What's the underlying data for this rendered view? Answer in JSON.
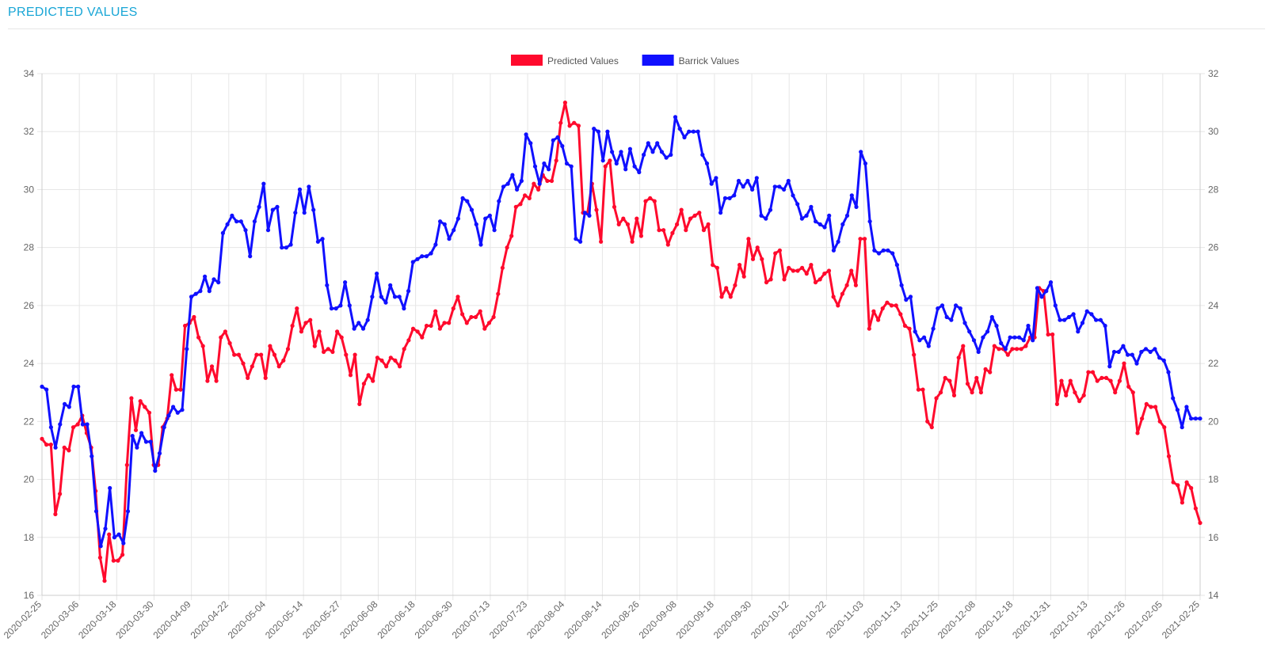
{
  "page": {
    "title": "PREDICTED VALUES"
  },
  "chart_data": {
    "type": "line",
    "title": "",
    "xlabel": "",
    "ylabel": "",
    "legend_position": "top-center",
    "grid": true,
    "x_tick_labels": [
      "2020-02-25",
      "2020-03-06",
      "2020-03-18",
      "2020-03-30",
      "2020-04-09",
      "2020-04-22",
      "2020-05-04",
      "2020-05-14",
      "2020-05-27",
      "2020-06-08",
      "2020-06-18",
      "2020-06-30",
      "2020-07-13",
      "2020-07-23",
      "2020-08-04",
      "2020-08-14",
      "2020-08-26",
      "2020-09-08",
      "2020-09-18",
      "2020-09-30",
      "2020-10-12",
      "2020-10-22",
      "2020-11-03",
      "2020-11-13",
      "2020-11-25",
      "2020-12-08",
      "2020-12-18",
      "2020-12-31",
      "2021-01-13",
      "2021-01-26",
      "2021-02-05",
      "2021-02-25"
    ],
    "y_left": {
      "min": 16,
      "max": 34,
      "ticks": [
        16,
        18,
        20,
        22,
        24,
        26,
        28,
        30,
        32,
        34
      ]
    },
    "y_right": {
      "min": 14,
      "max": 32,
      "ticks": [
        14,
        16,
        18,
        20,
        22,
        24,
        26,
        28,
        30,
        32
      ]
    },
    "series": [
      {
        "name": "Predicted Values",
        "color": "#ff0a2d",
        "axis": "left",
        "values": [
          21.4,
          21.2,
          21.2,
          18.8,
          19.5,
          21.1,
          21.0,
          21.8,
          21.9,
          22.2,
          21.6,
          21.1,
          19.6,
          17.3,
          16.5,
          18.1,
          17.2,
          17.2,
          17.4,
          20.5,
          22.8,
          21.7,
          22.7,
          22.5,
          22.3,
          20.5,
          20.5,
          21.8,
          22.1,
          23.6,
          23.1,
          23.1,
          25.3,
          25.4,
          25.6,
          24.9,
          24.6,
          23.4,
          23.9,
          23.4,
          24.9,
          25.1,
          24.7,
          24.3,
          24.3,
          24.0,
          23.5,
          23.9,
          24.3,
          24.3,
          23.5,
          24.6,
          24.3,
          23.9,
          24.1,
          24.5,
          25.3,
          25.9,
          25.1,
          25.4,
          25.5,
          24.6,
          25.1,
          24.4,
          24.5,
          24.4,
          25.1,
          24.9,
          24.3,
          23.6,
          24.3,
          22.6,
          23.3,
          23.6,
          23.4,
          24.2,
          24.1,
          23.9,
          24.2,
          24.1,
          23.9,
          24.5,
          24.8,
          25.2,
          25.1,
          24.9,
          25.3,
          25.3,
          25.8,
          25.2,
          25.4,
          25.4,
          25.9,
          26.3,
          25.7,
          25.4,
          25.6,
          25.6,
          25.8,
          25.2,
          25.4,
          25.6,
          26.4,
          27.3,
          28.0,
          28.4,
          29.4,
          29.5,
          29.8,
          29.7,
          30.2,
          30.0,
          30.5,
          30.3,
          30.3,
          31.0,
          32.3,
          33.0,
          32.2,
          32.3,
          32.2,
          29.2,
          29.2,
          30.2,
          29.3,
          28.2,
          30.8,
          31.0,
          29.4,
          28.8,
          29.0,
          28.8,
          28.2,
          29.0,
          28.4,
          29.6,
          29.7,
          29.6,
          28.6,
          28.6,
          28.1,
          28.5,
          28.8,
          29.3,
          28.6,
          29.0,
          29.1,
          29.2,
          28.6,
          28.8,
          27.4,
          27.3,
          26.3,
          26.6,
          26.3,
          26.7,
          27.4,
          27.0,
          28.3,
          27.6,
          28.0,
          27.6,
          26.8,
          26.9,
          27.8,
          27.9,
          26.9,
          27.3,
          27.2,
          27.2,
          27.3,
          27.1,
          27.4,
          26.8,
          26.9,
          27.1,
          27.2,
          26.3,
          26.0,
          26.4,
          26.7,
          27.2,
          26.7,
          28.3,
          28.3,
          25.2,
          25.8,
          25.5,
          25.9,
          26.1,
          26.0,
          26.0,
          25.7,
          25.3,
          25.2,
          24.3,
          23.1,
          23.1,
          22.0,
          21.8,
          22.8,
          23.0,
          23.5,
          23.4,
          22.9,
          24.2,
          24.6,
          23.3,
          23.0,
          23.5,
          23.0,
          23.8,
          23.7,
          24.6,
          24.5,
          24.5,
          24.3,
          24.5,
          24.5,
          24.5,
          24.6,
          24.9,
          24.9,
          26.6,
          26.5,
          25.0,
          25.0,
          22.6,
          23.4,
          22.9,
          23.4,
          23.0,
          22.7,
          22.9,
          23.7,
          23.7,
          23.4,
          23.5,
          23.5,
          23.4,
          23.0,
          23.4,
          24.0,
          23.2,
          23.0,
          21.6,
          22.1,
          22.6,
          22.5,
          22.5,
          22.0,
          21.8,
          20.8,
          19.9,
          19.8,
          19.2,
          19.9,
          19.7,
          19.0,
          18.5
        ]
      },
      {
        "name": "Barrick Values",
        "color": "#1010ff",
        "axis": "right",
        "values": [
          21.2,
          21.1,
          19.8,
          19.1,
          19.9,
          20.6,
          20.5,
          21.2,
          21.2,
          19.9,
          19.9,
          18.8,
          16.9,
          15.7,
          16.3,
          17.7,
          16.0,
          16.1,
          15.8,
          16.9,
          19.5,
          19.1,
          19.6,
          19.3,
          19.3,
          18.3,
          18.9,
          19.8,
          20.2,
          20.5,
          20.3,
          20.4,
          22.5,
          24.3,
          24.4,
          24.5,
          25.0,
          24.5,
          24.9,
          24.8,
          26.5,
          26.8,
          27.1,
          26.9,
          26.9,
          26.6,
          25.7,
          26.9,
          27.4,
          28.2,
          26.6,
          27.3,
          27.4,
          26.0,
          26.0,
          26.1,
          27.2,
          28.0,
          27.2,
          28.1,
          27.3,
          26.2,
          26.3,
          24.7,
          23.9,
          23.9,
          24.0,
          24.8,
          24.0,
          23.2,
          23.4,
          23.2,
          23.5,
          24.3,
          25.1,
          24.3,
          24.1,
          24.7,
          24.3,
          24.3,
          23.9,
          24.5,
          25.5,
          25.6,
          25.7,
          25.7,
          25.8,
          26.1,
          26.9,
          26.8,
          26.3,
          26.6,
          27.0,
          27.7,
          27.6,
          27.3,
          26.8,
          26.1,
          27.0,
          27.1,
          26.6,
          27.6,
          28.1,
          28.2,
          28.5,
          28.0,
          28.3,
          29.9,
          29.6,
          28.8,
          28.2,
          28.9,
          28.7,
          29.7,
          29.8,
          29.5,
          28.9,
          28.8,
          26.3,
          26.2,
          27.2,
          27.1,
          30.1,
          30.0,
          29.0,
          30.0,
          29.3,
          28.9,
          29.3,
          28.7,
          29.4,
          28.8,
          28.6,
          29.2,
          29.6,
          29.3,
          29.6,
          29.3,
          29.1,
          29.2,
          30.5,
          30.1,
          29.8,
          30.0,
          30.0,
          30.0,
          29.2,
          28.9,
          28.2,
          28.4,
          27.2,
          27.7,
          27.7,
          27.8,
          28.3,
          28.1,
          28.3,
          28.0,
          28.4,
          27.1,
          27.0,
          27.3,
          28.1,
          28.1,
          28.0,
          28.3,
          27.8,
          27.5,
          27.0,
          27.1,
          27.4,
          26.9,
          26.8,
          26.7,
          27.1,
          25.9,
          26.2,
          26.8,
          27.1,
          27.8,
          27.4,
          29.3,
          28.9,
          26.9,
          25.9,
          25.8,
          25.9,
          25.9,
          25.8,
          25.4,
          24.7,
          24.2,
          24.3,
          23.1,
          22.8,
          22.9,
          22.6,
          23.2,
          23.9,
          24.0,
          23.6,
          23.5,
          24.0,
          23.9,
          23.4,
          23.1,
          22.8,
          22.4,
          22.9,
          23.1,
          23.6,
          23.3,
          22.7,
          22.5,
          22.9,
          22.9,
          22.9,
          22.8,
          23.3,
          22.8,
          24.6,
          24.3,
          24.5,
          24.8,
          24.0,
          23.5,
          23.5,
          23.6,
          23.7,
          23.1,
          23.4,
          23.8,
          23.7,
          23.5,
          23.5,
          23.3,
          21.9,
          22.4,
          22.4,
          22.6,
          22.3,
          22.3,
          22.0,
          22.4,
          22.5,
          22.4,
          22.5,
          22.2,
          22.1,
          21.7,
          20.8,
          20.4,
          19.8,
          20.5,
          20.1,
          20.1,
          20.1
        ]
      }
    ]
  }
}
